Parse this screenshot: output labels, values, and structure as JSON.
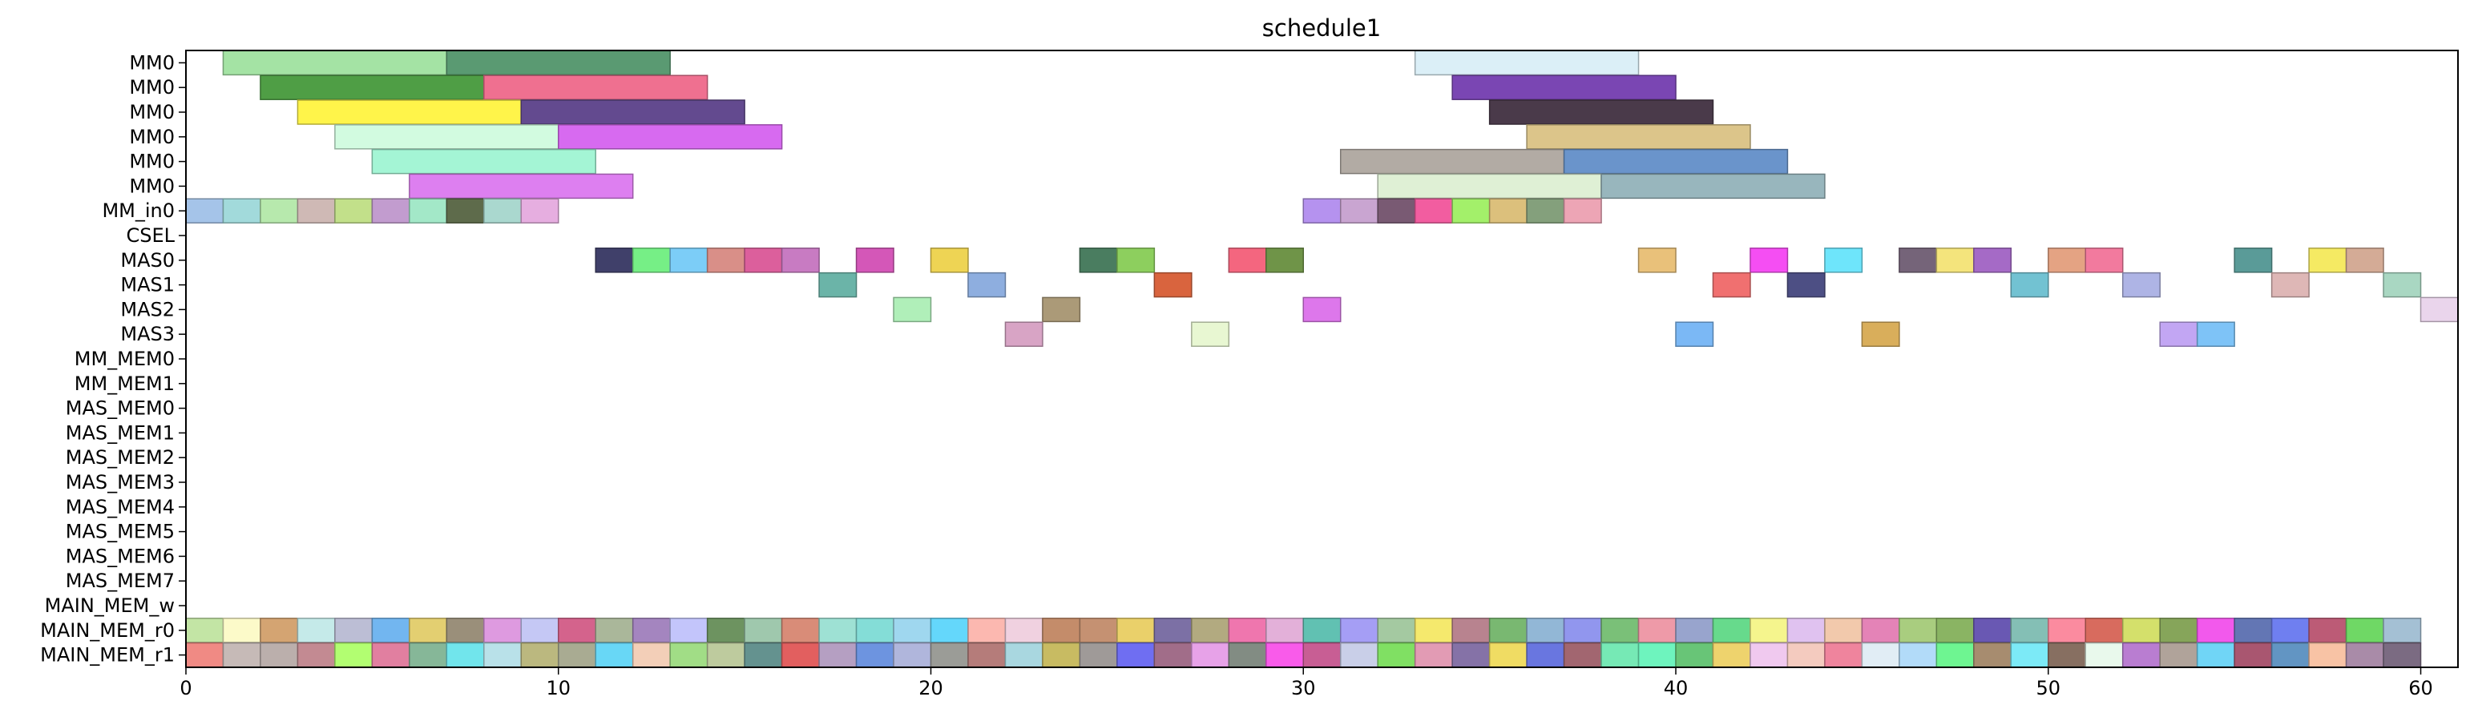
{
  "chart_data": {
    "type": "gantt",
    "title": "schedule1",
    "xlabel": "",
    "ylabel": "",
    "xlim": [
      0,
      61
    ],
    "xticks": [
      0,
      10,
      20,
      30,
      40,
      50,
      60
    ],
    "grid": false,
    "rows": [
      "MM0",
      "MM0",
      "MM0",
      "MM0",
      "MM0",
      "MM0",
      "MM_in0",
      "CSEL",
      "MAS0",
      "MAS1",
      "MAS2",
      "MAS3",
      "MM_MEM0",
      "MM_MEM1",
      "MAS_MEM0",
      "MAS_MEM1",
      "MAS_MEM2",
      "MAS_MEM3",
      "MAS_MEM4",
      "MAS_MEM5",
      "MAS_MEM6",
      "MAS_MEM7",
      "MAIN_MEM_w",
      "MAIN_MEM_r0",
      "MAIN_MEM_r1"
    ],
    "tasks": [
      {
        "row": 0,
        "start": 1,
        "end": 7,
        "color": "#a4e3a4"
      },
      {
        "row": 0,
        "start": 7,
        "end": 13,
        "color": "#5a9a72"
      },
      {
        "row": 0,
        "start": 33,
        "end": 39,
        "color": "#dbeff7"
      },
      {
        "row": 1,
        "start": 2,
        "end": 8,
        "color": "#4f9e45"
      },
      {
        "row": 1,
        "start": 8,
        "end": 14,
        "color": "#ef7090"
      },
      {
        "row": 1,
        "start": 34,
        "end": 40,
        "color": "#7a46b3"
      },
      {
        "row": 2,
        "start": 3,
        "end": 9,
        "color": "#fff44a"
      },
      {
        "row": 2,
        "start": 9,
        "end": 15,
        "color": "#634a8f"
      },
      {
        "row": 2,
        "start": 35,
        "end": 41,
        "color": "#4a3a4a"
      },
      {
        "row": 3,
        "start": 4,
        "end": 10,
        "color": "#d2fbe0"
      },
      {
        "row": 3,
        "start": 10,
        "end": 16,
        "color": "#d76af0"
      },
      {
        "row": 3,
        "start": 36,
        "end": 42,
        "color": "#dcc58a"
      },
      {
        "row": 4,
        "start": 5,
        "end": 11,
        "color": "#a4f5d5"
      },
      {
        "row": 4,
        "start": 31,
        "end": 37,
        "color": "#b2aba4"
      },
      {
        "row": 4,
        "start": 37,
        "end": 43,
        "color": "#6a94cb"
      },
      {
        "row": 5,
        "start": 6,
        "end": 12,
        "color": "#dd7ff0"
      },
      {
        "row": 5,
        "start": 32,
        "end": 38,
        "color": "#dff0d5"
      },
      {
        "row": 5,
        "start": 38,
        "end": 44,
        "color": "#98b6bd"
      },
      {
        "row": 6,
        "start": 0,
        "end": 1,
        "color": "#a5c4e9"
      },
      {
        "row": 6,
        "start": 1,
        "end": 2,
        "color": "#a2dadb"
      },
      {
        "row": 6,
        "start": 2,
        "end": 3,
        "color": "#b7e9ad"
      },
      {
        "row": 6,
        "start": 3,
        "end": 4,
        "color": "#cfb9b5"
      },
      {
        "row": 6,
        "start": 4,
        "end": 5,
        "color": "#c2e08a"
      },
      {
        "row": 6,
        "start": 5,
        "end": 6,
        "color": "#c29ccf"
      },
      {
        "row": 6,
        "start": 6,
        "end": 7,
        "color": "#a3e8c8"
      },
      {
        "row": 6,
        "start": 7,
        "end": 8,
        "color": "#5e6b4b"
      },
      {
        "row": 6,
        "start": 8,
        "end": 9,
        "color": "#aad8cf"
      },
      {
        "row": 6,
        "start": 9,
        "end": 10,
        "color": "#e6aee0"
      },
      {
        "row": 6,
        "start": 30,
        "end": 31,
        "color": "#b592ef"
      },
      {
        "row": 6,
        "start": 31,
        "end": 32,
        "color": "#c9a5d1"
      },
      {
        "row": 6,
        "start": 32,
        "end": 33,
        "color": "#795a73"
      },
      {
        "row": 6,
        "start": 33,
        "end": 34,
        "color": "#f25da0"
      },
      {
        "row": 6,
        "start": 34,
        "end": 35,
        "color": "#a3f06a"
      },
      {
        "row": 6,
        "start": 35,
        "end": 36,
        "color": "#dcc07c"
      },
      {
        "row": 6,
        "start": 36,
        "end": 37,
        "color": "#84a07c"
      },
      {
        "row": 6,
        "start": 37,
        "end": 38,
        "color": "#eda5b5"
      },
      {
        "row": 8,
        "start": 11,
        "end": 12,
        "color": "#40406a"
      },
      {
        "row": 8,
        "start": 12,
        "end": 13,
        "color": "#76ef86"
      },
      {
        "row": 8,
        "start": 13,
        "end": 14,
        "color": "#7ccdf7"
      },
      {
        "row": 8,
        "start": 14,
        "end": 15,
        "color": "#d98f88"
      },
      {
        "row": 8,
        "start": 15,
        "end": 16,
        "color": "#dc5f9c"
      },
      {
        "row": 8,
        "start": 16,
        "end": 17,
        "color": "#c87bc2"
      },
      {
        "row": 8,
        "start": 18,
        "end": 19,
        "color": "#d457b8"
      },
      {
        "row": 8,
        "start": 20,
        "end": 21,
        "color": "#eed454"
      },
      {
        "row": 8,
        "start": 24,
        "end": 25,
        "color": "#4a7d60"
      },
      {
        "row": 8,
        "start": 25,
        "end": 26,
        "color": "#8dcf5e"
      },
      {
        "row": 8,
        "start": 28,
        "end": 29,
        "color": "#f4667f"
      },
      {
        "row": 8,
        "start": 29,
        "end": 30,
        "color": "#6f9448"
      },
      {
        "row": 8,
        "start": 39,
        "end": 40,
        "color": "#e9c17a"
      },
      {
        "row": 8,
        "start": 42,
        "end": 43,
        "color": "#f54ef3"
      },
      {
        "row": 8,
        "start": 44,
        "end": 45,
        "color": "#6ee5fb"
      },
      {
        "row": 8,
        "start": 46,
        "end": 47,
        "color": "#756479"
      },
      {
        "row": 8,
        "start": 47,
        "end": 48,
        "color": "#f4e47c"
      },
      {
        "row": 8,
        "start": 48,
        "end": 49,
        "color": "#a56ac6"
      },
      {
        "row": 8,
        "start": 50,
        "end": 51,
        "color": "#e4a383"
      },
      {
        "row": 8,
        "start": 51,
        "end": 52,
        "color": "#f27a9e"
      },
      {
        "row": 8,
        "start": 55,
        "end": 56,
        "color": "#5a9b98"
      },
      {
        "row": 8,
        "start": 57,
        "end": 58,
        "color": "#f5ea63"
      },
      {
        "row": 8,
        "start": 58,
        "end": 59,
        "color": "#d4ab96"
      },
      {
        "row": 9,
        "start": 17,
        "end": 18,
        "color": "#6bb4a8"
      },
      {
        "row": 9,
        "start": 21,
        "end": 22,
        "color": "#8eaedf"
      },
      {
        "row": 9,
        "start": 26,
        "end": 27,
        "color": "#d9643e"
      },
      {
        "row": 9,
        "start": 41,
        "end": 42,
        "color": "#f07070"
      },
      {
        "row": 9,
        "start": 43,
        "end": 44,
        "color": "#4d4f84"
      },
      {
        "row": 9,
        "start": 49,
        "end": 50,
        "color": "#72c2d2"
      },
      {
        "row": 9,
        "start": 52,
        "end": 53,
        "color": "#aeb4e5"
      },
      {
        "row": 9,
        "start": 56,
        "end": 57,
        "color": "#deb7b6"
      },
      {
        "row": 9,
        "start": 59,
        "end": 60,
        "color": "#a9d7c2"
      },
      {
        "row": 10,
        "start": 19,
        "end": 20,
        "color": "#b0efb9"
      },
      {
        "row": 10,
        "start": 23,
        "end": 24,
        "color": "#ab9a78"
      },
      {
        "row": 10,
        "start": 30,
        "end": 31,
        "color": "#dd77eb"
      },
      {
        "row": 10,
        "start": 60,
        "end": 61,
        "color": "#ead5ec"
      },
      {
        "row": 11,
        "start": 22,
        "end": 23,
        "color": "#d8a4c5"
      },
      {
        "row": 11,
        "start": 27,
        "end": 28,
        "color": "#e8f7d2"
      },
      {
        "row": 11,
        "start": 40,
        "end": 41,
        "color": "#7bb8f5"
      },
      {
        "row": 11,
        "start": 45,
        "end": 46,
        "color": "#d9ae5b"
      },
      {
        "row": 11,
        "start": 53,
        "end": 54,
        "color": "#c2a6f3"
      },
      {
        "row": 11,
        "start": 54,
        "end": 55,
        "color": "#7ec3f7"
      }
    ],
    "stripe_rows": [
      {
        "row": 23,
        "colors": [
          "#c3e5a5",
          "#fcfac9",
          "#d4a472",
          "#c5eae9",
          "#bcbed5",
          "#72b6f0",
          "#e3cf71",
          "#9a8f7a",
          "#de9ae0",
          "#c5c8f5",
          "#d4638c",
          "#aab79a",
          "#a485bf",
          "#c3c5fb",
          "#6d9360",
          "#9fc8ad",
          "#d98c78",
          "#9ee1d4",
          "#84ddd7",
          "#9fd7ef",
          "#64d7fb",
          "#fcb8b0",
          "#f0d1e0",
          "#c48c6a",
          "#c59172",
          "#ead06a",
          "#7c70a5",
          "#b2aa80",
          "#ef76ae",
          "#e3b0d9",
          "#61c1b2",
          "#a59ef5",
          "#a4c9a1",
          "#f5e96d",
          "#b8838f",
          "#79b871",
          "#92b7d6",
          "#9196ee",
          "#7ac078",
          "#ee9aa8",
          "#98a4cd",
          "#67da8c",
          "#f5f58d",
          "#e0c2f0",
          "#f2c9ac",
          "#e483b7",
          "#a9cd7f",
          "#8ab463",
          "#6958b3",
          "#84bfb5",
          "#fb8b9f",
          "#d86b5e",
          "#d4e06b",
          "#86a55a",
          "#f259ec",
          "#6376b4",
          "#6f7ff0",
          "#bc5b76",
          "#6fd865",
          "#a4c0d4"
        ]
      },
      {
        "row": 24,
        "colors": [
          "#f08a84",
          "#c6bab7",
          "#bbafac",
          "#c38a92",
          "#b2fe71",
          "#e17fa0",
          "#86b798",
          "#71e5ec",
          "#b9e1e9",
          "#bbb87f",
          "#a9ab92",
          "#68d7f6",
          "#f3cfb8",
          "#a1dd86",
          "#becb9e",
          "#64928f",
          "#e25f5f",
          "#b59fc2",
          "#6d94e0",
          "#b0b6dc",
          "#9b9c97",
          "#b57c7a",
          "#a9d7e0",
          "#c8bb62",
          "#9f9a98",
          "#6f6ef2",
          "#a16d89",
          "#e7a2e8",
          "#828c83",
          "#f95bea",
          "#c85e94",
          "#c9cfe8",
          "#80e063",
          "#e29bb4",
          "#8572a7",
          "#f0dc63",
          "#6976e0",
          "#a26670",
          "#76e9b5",
          "#6ef4be",
          "#68c577",
          "#eed36d",
          "#f0c9ef",
          "#f4cbbf",
          "#ef849d",
          "#e1edf5",
          "#b2dbf9",
          "#6ef591",
          "#a78c6f",
          "#7ceaf7",
          "#876f61",
          "#e9f9ec",
          "#b97dd1",
          "#b0a39a",
          "#70d5f6",
          "#a95670",
          "#6295c3",
          "#f8c3a5",
          "#a98ba8",
          "#7b6b82"
        ]
      }
    ]
  }
}
